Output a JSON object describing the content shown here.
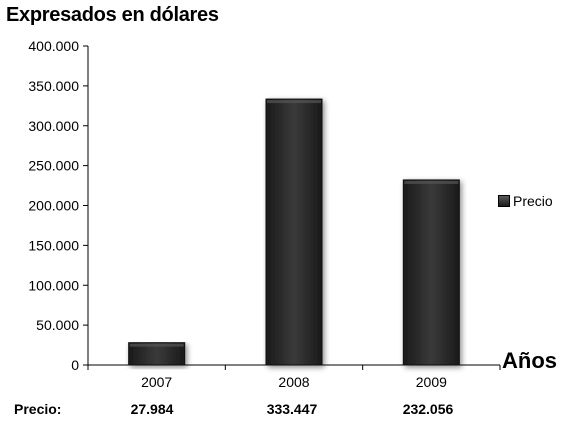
{
  "title": "Expresados en dólares",
  "chart_data": {
    "type": "bar",
    "title": "Expresados en dólares",
    "categories": [
      "2007",
      "2008",
      "2009"
    ],
    "series": [
      {
        "name": "Precio",
        "values": [
          27984,
          333447,
          232056
        ]
      }
    ],
    "xlabel": "Años",
    "ylabel": "",
    "ylim": [
      0,
      400000
    ],
    "yticks": [
      0,
      50000,
      100000,
      150000,
      200000,
      250000,
      300000,
      350000,
      400000
    ],
    "ytick_labels": [
      "0",
      "50.000",
      "100.000",
      "150.000",
      "200.000",
      "250.000",
      "300.000",
      "350.000",
      "400.000"
    ],
    "grid": false,
    "legend_position": "right",
    "bar_color": "#2f2f2f",
    "data_table": {
      "row_label": "Precio:",
      "values": [
        "27.984",
        "333.447",
        "232.056"
      ]
    }
  },
  "legend": {
    "label": "Precio"
  },
  "x_axis_label": "Años"
}
